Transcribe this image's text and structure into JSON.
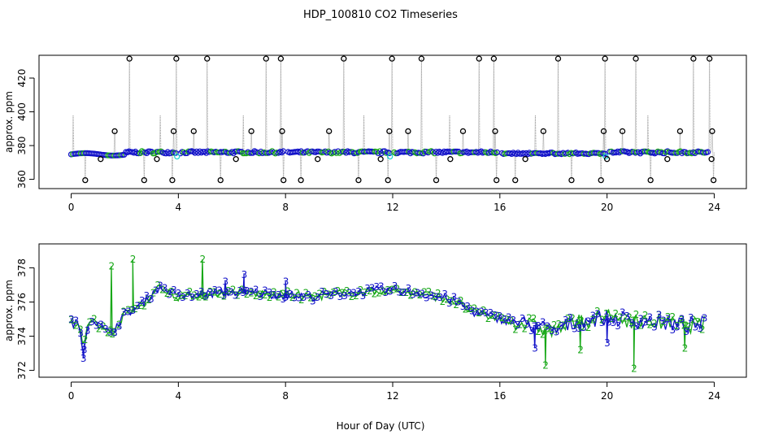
{
  "figure": {
    "title": "HDP_100810  CO2 Timeseries",
    "xlabel": "Hour of Day (UTC)"
  },
  "chart_data": [
    {
      "type": "scatter",
      "panel": "top",
      "title": "HDP_100810  CO2 Timeseries",
      "xlabel": "",
      "ylabel": "approx. ppm",
      "xlim": [
        -1.2,
        25.2
      ],
      "ylim": [
        354.5,
        433.5
      ],
      "xticks": [
        0,
        4,
        8,
        12,
        16,
        20,
        24
      ],
      "yticks": [
        360,
        380,
        400,
        420
      ],
      "baseline_level": 376,
      "spike_top_values": [
        2.15,
        3.9,
        5.05,
        7.25,
        7.8,
        10.15,
        11.95,
        13.05,
        15.2,
        15.75,
        18.15,
        19.9,
        21.05,
        23.2,
        23.8
      ],
      "spike_mid_values": [
        1.6,
        3.8,
        4.55,
        6.7,
        7.85,
        9.6,
        11.85,
        12.55,
        14.6,
        15.8,
        17.6,
        19.85,
        20.55,
        22.7,
        23.9
      ],
      "spike_low_values": [
        0.5,
        2.7,
        3.75,
        5.55,
        7.9,
        8.55,
        10.7,
        11.8,
        13.6,
        15.85,
        16.55,
        18.65,
        19.75,
        21.6,
        23.95
      ],
      "extra_low_points": [
        1.1,
        3.2,
        6.15,
        9.2,
        11.55,
        14.15,
        16.95,
        20.0,
        22.25,
        23.9
      ],
      "gaps_in_series": [
        4.0,
        8.0,
        12.0,
        16.0,
        20.0
      ],
      "series": [
        {
          "marker": "circle",
          "color": "#1010c8",
          "y_center": 376,
          "spread": 1.2
        },
        {
          "marker": "circle",
          "color": "#18a818",
          "y_center": 376,
          "spread": 1.6
        },
        {
          "marker": "circle",
          "color": "#18d0d0",
          "y_center": 373,
          "spread": 0.5
        },
        {
          "marker": "circle",
          "color": "#000000",
          "y_center": 378,
          "spread": 0
        }
      ]
    },
    {
      "type": "line",
      "panel": "bottom",
      "xlabel": "Hour of Day (UTC)",
      "ylabel": "approx. ppm",
      "xlim": [
        -1.2,
        25.2
      ],
      "ylim": [
        371.6,
        379.4
      ],
      "xticks": [
        0,
        4,
        8,
        12,
        16,
        20,
        24
      ],
      "yticks": [
        372,
        374,
        376,
        378
      ],
      "series": [
        {
          "name": "2",
          "color": "#18a818",
          "marker": "2"
        },
        {
          "name": "3",
          "color": "#1010c8",
          "marker": "3"
        }
      ],
      "profile": {
        "x": [
          0,
          0.3,
          0.45,
          0.6,
          0.8,
          1.0,
          1.3,
          1.6,
          2.0,
          2.4,
          2.8,
          3.2,
          3.6,
          4.0,
          6.0,
          8.0,
          9.0,
          10.0,
          11.0,
          12.0,
          13.0,
          14.0,
          14.5,
          15.0,
          16.0,
          17.0,
          18.0,
          19.0,
          20.0,
          21.0,
          22.0,
          23.0,
          23.8
        ],
        "y": [
          374.8,
          374.6,
          373.2,
          374.6,
          375.1,
          374.7,
          374.2,
          374.4,
          375.3,
          375.6,
          376.1,
          376.8,
          376.7,
          376.3,
          376.6,
          376.4,
          376.3,
          376.5,
          376.6,
          376.7,
          376.5,
          376.2,
          375.9,
          375.4,
          375.0,
          374.7,
          374.3,
          374.9,
          375.1,
          374.9,
          374.8,
          374.6,
          374.8
        ]
      },
      "spikes": [
        {
          "series": "2",
          "x": 1.5,
          "y": 378.1
        },
        {
          "series": "2",
          "x": 2.3,
          "y": 378.5
        },
        {
          "series": "2",
          "x": 4.9,
          "y": 378.5
        },
        {
          "series": "3",
          "x": 6.45,
          "y": 377.6
        },
        {
          "series": "3",
          "x": 5.75,
          "y": 377.2
        },
        {
          "series": "3",
          "x": 8.0,
          "y": 377.2
        },
        {
          "series": "3",
          "x": 0.45,
          "y": 372.7
        },
        {
          "series": "2",
          "x": 17.7,
          "y": 372.3
        },
        {
          "series": "3",
          "x": 17.3,
          "y": 373.3
        },
        {
          "series": "2",
          "x": 19.0,
          "y": 373.2
        },
        {
          "series": "2",
          "x": 21.0,
          "y": 372.1
        },
        {
          "series": "2",
          "x": 22.9,
          "y": 373.3
        },
        {
          "series": "3",
          "x": 20.0,
          "y": 373.6
        }
      ]
    }
  ]
}
